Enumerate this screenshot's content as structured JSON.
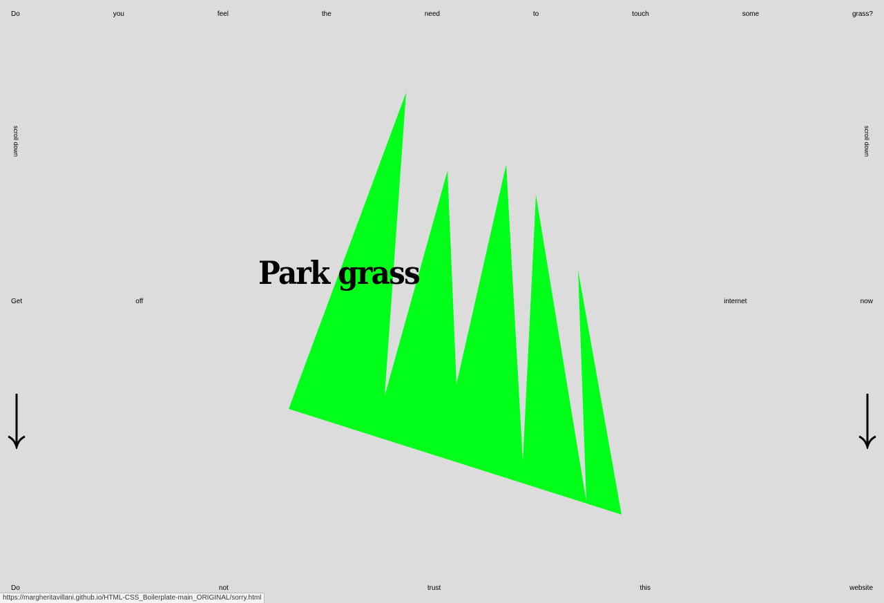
{
  "top_row": [
    "Do",
    "you",
    "feel",
    "the",
    "need",
    "to",
    "touch",
    "some",
    "grass?"
  ],
  "middle_row": [
    "Get",
    "off",
    "",
    "",
    "",
    "",
    "internet",
    "now"
  ],
  "bottom_row": [
    "Do",
    "not",
    "trust",
    "this",
    "website"
  ],
  "side_text": {
    "left": "scroll down",
    "right": "scroll down"
  },
  "title": "Park grass",
  "status_url": "https://margheritavillani.github.io/HTML-CSS_Boilerplate-main_ORIGINAL/sorry.html",
  "colors": {
    "background": "#dcdcdc",
    "grass": "#00ff19",
    "text": "#000000"
  },
  "icons": {
    "arrows": "arrow-down-icon"
  }
}
